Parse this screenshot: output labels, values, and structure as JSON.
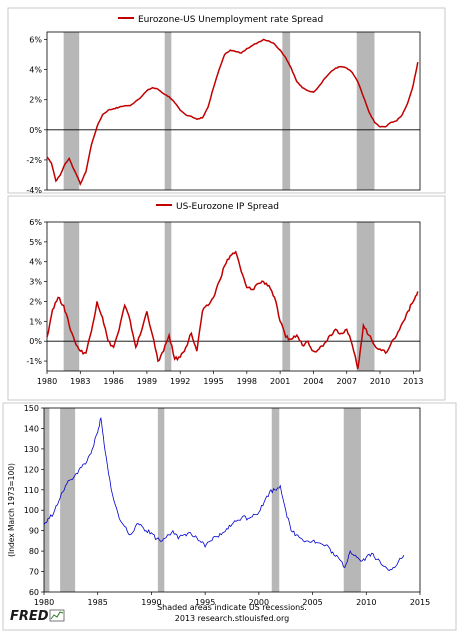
{
  "chart_data": [
    {
      "type": "line",
      "title": "Eurozone-US Unemployment rate Spread",
      "y_ticks": [
        "6%",
        "4%",
        "2%",
        "0%",
        "-2%",
        "-4%"
      ],
      "ylim": [
        -4,
        6.5
      ],
      "xlim": [
        1980,
        2013.6
      ],
      "recessions": [
        [
          1981.5,
          1982.9
        ],
        [
          1990.6,
          1991.2
        ],
        [
          2001.2,
          2001.9
        ],
        [
          2007.9,
          2009.5
        ]
      ],
      "color": "#c00000",
      "x": [
        1980.0,
        1980.4,
        1980.8,
        1981.2,
        1981.6,
        1982.0,
        1982.4,
        1982.8,
        1983.0,
        1983.5,
        1984.0,
        1984.5,
        1985.0,
        1985.5,
        1986.0,
        1986.5,
        1987.0,
        1987.5,
        1988.0,
        1988.5,
        1989.0,
        1989.5,
        1990.0,
        1990.5,
        1991.0,
        1991.5,
        1992.0,
        1992.5,
        1993.0,
        1993.5,
        1994.0,
        1994.5,
        1995.0,
        1995.5,
        1996.0,
        1996.5,
        1997.0,
        1997.5,
        1998.0,
        1998.5,
        1999.0,
        1999.5,
        2000.0,
        2000.5,
        2001.0,
        2001.5,
        2002.0,
        2002.5,
        2003.0,
        2003.5,
        2004.0,
        2004.5,
        2005.0,
        2005.5,
        2006.0,
        2006.5,
        2007.0,
        2007.5,
        2008.0,
        2008.5,
        2009.0,
        2009.5,
        2010.0,
        2010.5,
        2011.0,
        2011.5,
        2012.0,
        2012.5,
        2013.0,
        2013.4
      ],
      "y": [
        -1.8,
        -2.2,
        -3.4,
        -3.0,
        -2.3,
        -1.9,
        -2.6,
        -3.2,
        -3.6,
        -2.8,
        -1.0,
        0.2,
        1.0,
        1.3,
        1.4,
        1.5,
        1.6,
        1.6,
        1.9,
        2.2,
        2.6,
        2.8,
        2.7,
        2.4,
        2.2,
        1.8,
        1.3,
        1.0,
        0.9,
        0.7,
        0.8,
        1.5,
        2.8,
        4.0,
        5.0,
        5.3,
        5.2,
        5.1,
        5.4,
        5.6,
        5.8,
        6.0,
        5.9,
        5.7,
        5.3,
        4.8,
        4.1,
        3.2,
        2.8,
        2.6,
        2.5,
        2.9,
        3.4,
        3.8,
        4.1,
        4.2,
        4.1,
        3.8,
        3.2,
        2.2,
        1.2,
        0.5,
        0.2,
        0.2,
        0.5,
        0.6,
        1.0,
        1.8,
        3.0,
        4.5
      ]
    },
    {
      "type": "line",
      "title": "US-Eurozone IP Spread",
      "y_ticks": [
        "6%",
        "5%",
        "4%",
        "3%",
        "2%",
        "1%",
        "0%",
        "-1%"
      ],
      "x_ticks": [
        "1980",
        "1983",
        "1986",
        "1989",
        "1992",
        "1995",
        "1998",
        "2001",
        "2004",
        "2007",
        "2010",
        "2013"
      ],
      "ylim": [
        -1.5,
        6
      ],
      "xlim": [
        1980,
        2013.6
      ],
      "recessions": [
        [
          1981.5,
          1982.9
        ],
        [
          1990.6,
          1991.2
        ],
        [
          2001.2,
          2001.9
        ],
        [
          2007.9,
          2009.5
        ]
      ],
      "color": "#c00000",
      "x": [
        1980.0,
        1980.5,
        1981.0,
        1981.5,
        1982.0,
        1982.5,
        1983.0,
        1983.5,
        1984.0,
        1984.5,
        1985.0,
        1985.5,
        1986.0,
        1986.5,
        1987.0,
        1987.5,
        1988.0,
        1988.5,
        1989.0,
        1989.5,
        1990.0,
        1990.5,
        1991.0,
        1991.5,
        1992.0,
        1992.5,
        1993.0,
        1993.5,
        1994.0,
        1994.5,
        1995.0,
        1995.5,
        1996.0,
        1996.5,
        1997.0,
        1997.5,
        1998.0,
        1998.5,
        1999.0,
        1999.5,
        2000.0,
        2000.5,
        2001.0,
        2001.5,
        2002.0,
        2002.5,
        2003.0,
        2003.5,
        2004.0,
        2004.5,
        2005.0,
        2005.5,
        2006.0,
        2006.5,
        2007.0,
        2007.5,
        2008.0,
        2008.5,
        2009.0,
        2009.5,
        2010.0,
        2010.5,
        2011.0,
        2011.5,
        2012.0,
        2012.5,
        2013.0,
        2013.4
      ],
      "y": [
        0.2,
        1.6,
        2.2,
        1.8,
        0.8,
        0.0,
        -0.5,
        -0.6,
        0.5,
        2.0,
        1.2,
        0.0,
        -0.3,
        0.6,
        1.8,
        1.0,
        -0.3,
        0.5,
        1.5,
        0.3,
        -1.0,
        -0.5,
        0.3,
        -0.9,
        -0.8,
        -0.3,
        0.4,
        -0.5,
        1.5,
        1.8,
        2.2,
        3.0,
        3.8,
        4.3,
        4.5,
        3.5,
        2.7,
        2.6,
        2.9,
        3.0,
        2.8,
        2.2,
        1.0,
        0.2,
        0.1,
        0.3,
        -0.2,
        0.0,
        -0.5,
        -0.4,
        -0.1,
        0.3,
        0.6,
        0.4,
        0.6,
        -0.2,
        -1.4,
        0.8,
        0.3,
        -0.2,
        -0.4,
        -0.6,
        -0.1,
        0.3,
        0.9,
        1.5,
        2.0,
        2.5
      ]
    },
    {
      "type": "line",
      "ylabel": "(Index March 1973=100)",
      "y_ticks": [
        "150",
        "140",
        "130",
        "120",
        "110",
        "100",
        "90",
        "80",
        "70",
        "60"
      ],
      "x_ticks": [
        "1980",
        "1985",
        "1990",
        "1995",
        "2000",
        "2005",
        "2010",
        "2015"
      ],
      "ylim": [
        60,
        150
      ],
      "xlim": [
        1980,
        2015
      ],
      "recessions": [
        [
          1980.0,
          1980.5
        ],
        [
          1981.5,
          1982.9
        ],
        [
          1990.6,
          1991.2
        ],
        [
          2001.2,
          2001.9
        ],
        [
          2007.9,
          2009.5
        ]
      ],
      "color": "#0000cc",
      "x": [
        1980.0,
        1980.5,
        1981.0,
        1981.5,
        1982.0,
        1982.5,
        1983.0,
        1983.5,
        1984.0,
        1984.5,
        1985.0,
        1985.3,
        1985.6,
        1986.0,
        1986.5,
        1987.0,
        1987.5,
        1988.0,
        1988.5,
        1989.0,
        1989.5,
        1990.0,
        1990.5,
        1991.0,
        1991.5,
        1992.0,
        1992.5,
        1993.0,
        1993.5,
        1994.0,
        1994.5,
        1995.0,
        1995.5,
        1996.0,
        1996.5,
        1997.0,
        1997.5,
        1998.0,
        1998.5,
        1999.0,
        1999.5,
        2000.0,
        2000.5,
        2001.0,
        2001.5,
        2002.0,
        2002.5,
        2003.0,
        2003.5,
        2004.0,
        2004.5,
        2005.0,
        2005.5,
        2006.0,
        2006.5,
        2007.0,
        2007.5,
        2008.0,
        2008.5,
        2009.0,
        2009.5,
        2010.0,
        2010.5,
        2011.0,
        2011.5,
        2012.0,
        2012.5,
        2013.0,
        2013.5
      ],
      "y": [
        93,
        96,
        100,
        106,
        112,
        115,
        118,
        121,
        124,
        130,
        138,
        145,
        132,
        118,
        105,
        96,
        92,
        88,
        92,
        93,
        90,
        89,
        86,
        85,
        88,
        90,
        86,
        88,
        89,
        87,
        85,
        82,
        85,
        87,
        88,
        91,
        93,
        95,
        97,
        96,
        98,
        99,
        104,
        109,
        110,
        112,
        100,
        90,
        88,
        86,
        85,
        85,
        84,
        83,
        82,
        78,
        76,
        72,
        80,
        78,
        75,
        77,
        79,
        76,
        73,
        71,
        72,
        75,
        78
      ]
    }
  ],
  "footer": {
    "logo": "FRED",
    "note": "Shaded areas indicate US recessions.",
    "source": "2013 research.stlouisfed.org"
  }
}
